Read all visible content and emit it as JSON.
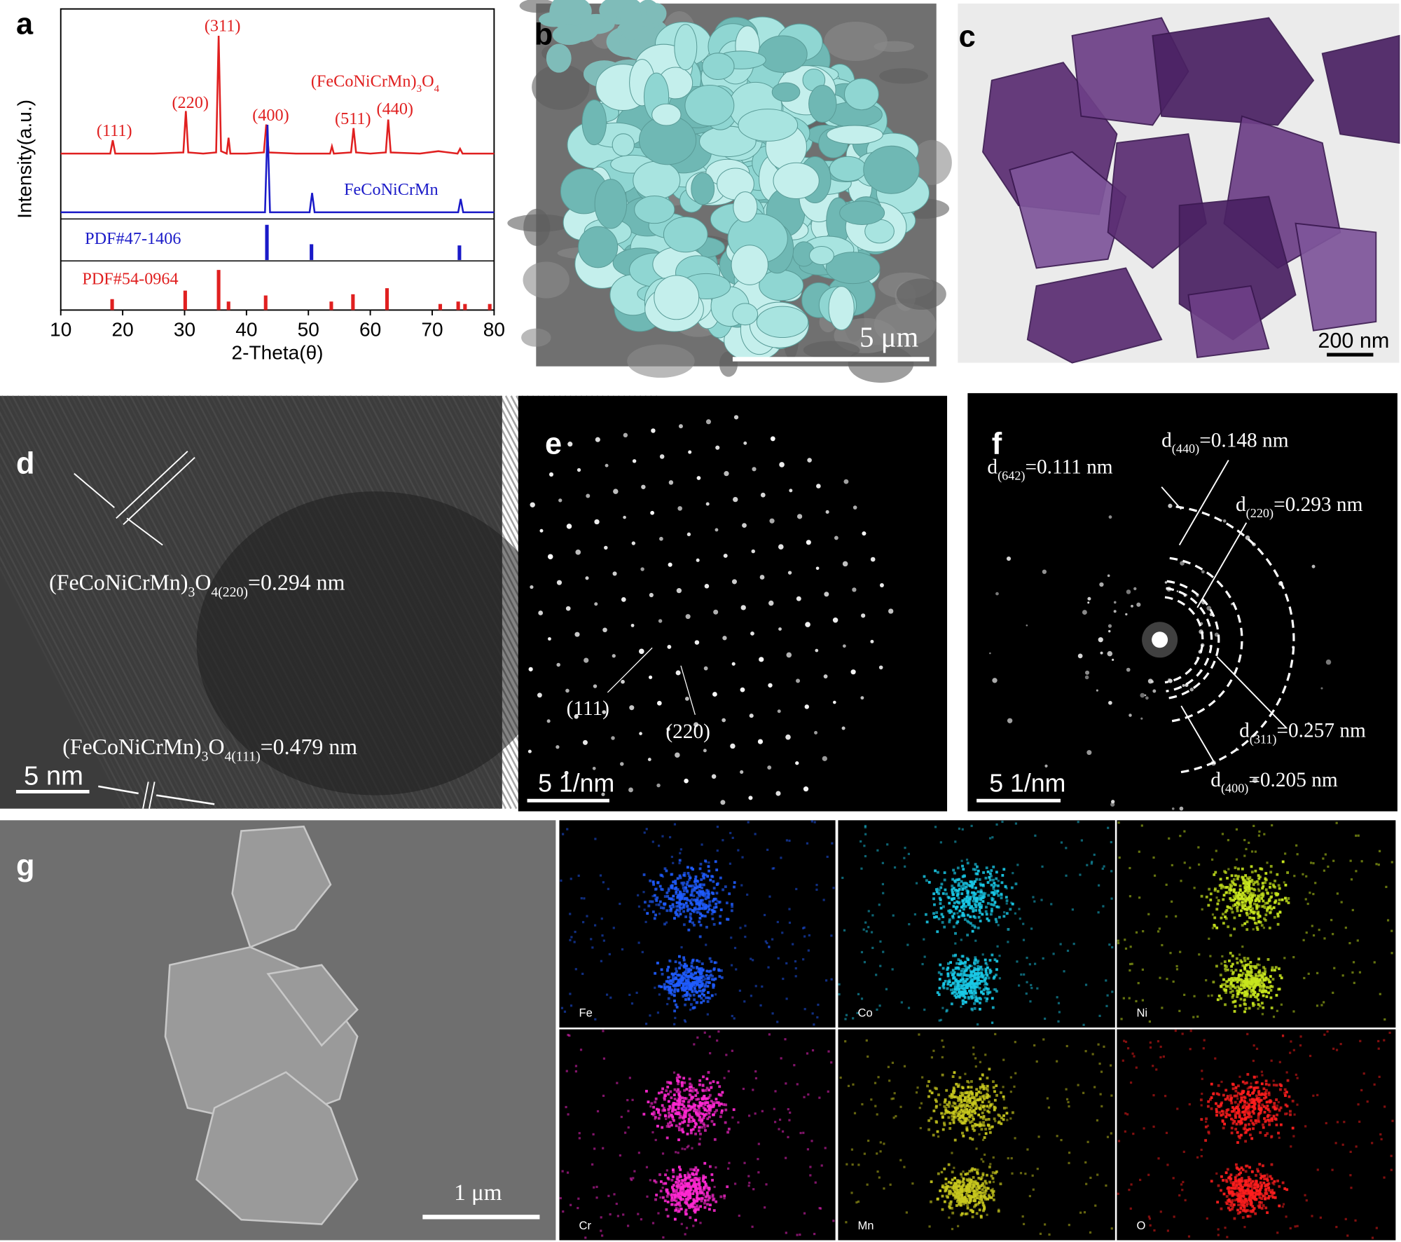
{
  "chart_data": {
    "type": "line",
    "label": "a",
    "xlabel": "2-Theta(θ)",
    "ylabel": "Intensity(a.u.)",
    "xlim": [
      10,
      80
    ],
    "xticks": [
      10,
      20,
      30,
      40,
      50,
      60,
      70,
      80
    ],
    "ylim": [
      0,
      100
    ],
    "peak_labels": [
      "(111)",
      "(220)",
      "(311)",
      "(400)",
      "(511)",
      "(440)"
    ],
    "series": [
      {
        "name": [
          "(FeCoNiCrMn)",
          "3",
          "O",
          "4"
        ],
        "color": "#e02020",
        "style": "line",
        "x": [
          10,
          15,
          18.0,
          18.4,
          18.8,
          25,
          29.8,
          30.2,
          30.6,
          33,
          35.1,
          35.5,
          35.9,
          36.8,
          37.1,
          37.4,
          40,
          42.8,
          43.2,
          43.6,
          48,
          53.5,
          53.8,
          54.1,
          56.9,
          57.3,
          57.7,
          60,
          62.5,
          62.9,
          63.3,
          68,
          71,
          74.1,
          74.5,
          74.9,
          80
        ],
        "values": [
          3,
          3,
          3,
          14,
          3,
          3,
          4,
          38,
          4,
          3,
          4,
          100,
          5,
          3,
          16,
          3,
          3,
          4,
          27,
          4,
          3,
          3,
          9,
          3,
          4,
          24,
          4,
          3,
          4,
          31,
          4,
          3,
          5,
          3,
          7,
          3,
          3
        ]
      },
      {
        "name": "FeCoNiCrMn",
        "color": "#1a1ac8",
        "style": "line",
        "x": [
          10,
          43.0,
          43.4,
          43.8,
          50.2,
          50.6,
          51.0,
          74.2,
          74.6,
          75.0,
          80
        ],
        "values": [
          1,
          1,
          73,
          1,
          1,
          17,
          1,
          1,
          12,
          1,
          1
        ]
      },
      {
        "name": "PDF#47-1406",
        "color": "#1a1ac8",
        "style": "stick",
        "x": [
          43.3,
          50.5,
          74.4
        ],
        "values": [
          29,
          13,
          12
        ]
      },
      {
        "name": "PDF#54-0964",
        "color": "#e02020",
        "style": "stick",
        "x": [
          18.3,
          30.1,
          35.5,
          37.1,
          43.1,
          53.7,
          57.2,
          62.7,
          71.3,
          74.2,
          75.3,
          79.3
        ],
        "values": [
          9,
          16,
          33,
          7,
          12,
          7,
          13,
          18,
          5,
          7,
          5,
          5
        ]
      }
    ]
  },
  "panels": {
    "b": {
      "label": "b",
      "scale_bar": "5 μm"
    },
    "c": {
      "label": "c",
      "scale_bar": "200 nm"
    },
    "d": {
      "label": "d",
      "annotations": [
        [
          "(FeCoNiCrMn)",
          "3",
          "O",
          "4(220)",
          "=0.294 nm"
        ],
        [
          "(FeCoNiCrMn)",
          "3",
          "O",
          "4(111)",
          "=0.479 nm"
        ]
      ],
      "scale_bar": "5 nm"
    },
    "e": {
      "label": "e",
      "annotations": [
        "(111)",
        "(220)"
      ],
      "scale_bar": "5 1/nm"
    },
    "f": {
      "label": "f",
      "annotations": [
        [
          "d",
          "(642)",
          "=0.111 nm"
        ],
        [
          "d",
          "(440)",
          "=0.148 nm"
        ],
        [
          "d",
          "(220)",
          "=0.293 nm"
        ],
        [
          "d",
          "(311)",
          "=0.257 nm"
        ],
        [
          "d",
          "(400)",
          "=0.205 nm"
        ]
      ],
      "scale_bar": "5 1/nm"
    },
    "g": {
      "label": "g",
      "scale_bar": "1 μm",
      "maps": [
        {
          "label": "Fe",
          "color": "#1f5cff"
        },
        {
          "label": "Co",
          "color": "#19c8e6"
        },
        {
          "label": "Ni",
          "color": "#c8e61e"
        },
        {
          "label": "Cr",
          "color": "#ff28d2"
        },
        {
          "label": "Mn",
          "color": "#c8c81e"
        },
        {
          "label": "O",
          "color": "#ff1e1e"
        }
      ]
    }
  }
}
